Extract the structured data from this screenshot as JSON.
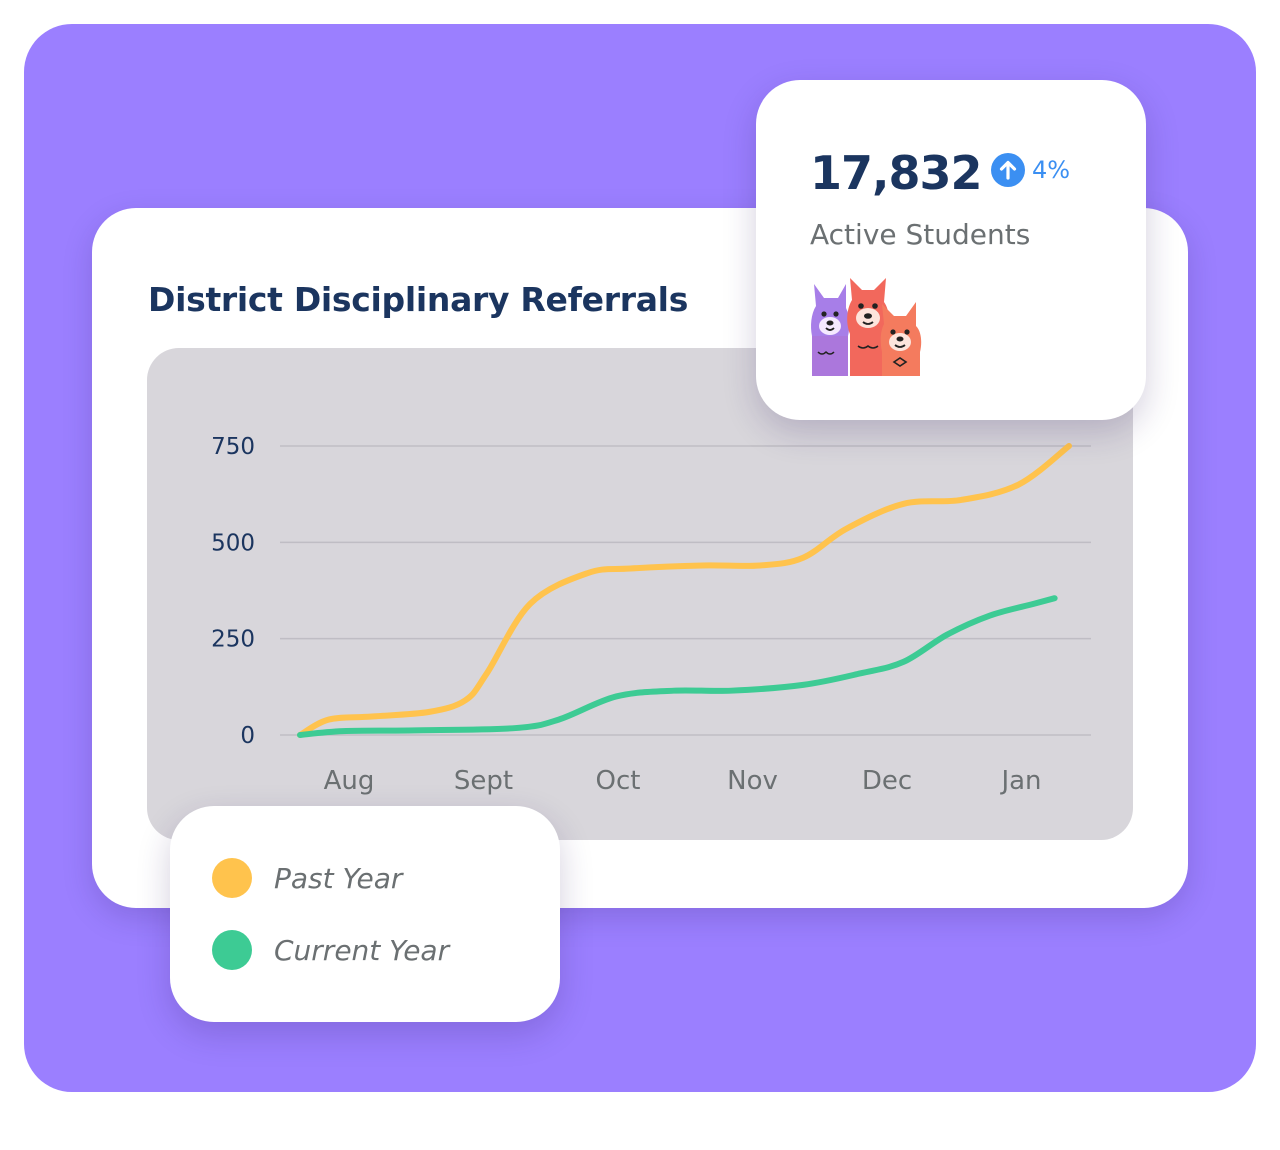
{
  "colors": {
    "background": "#9b7fff",
    "title": "#1b355f",
    "past_year": "#ffc34d",
    "current_year": "#3dcb94",
    "accent_blue": "#3b8ff2",
    "muted_text": "#6b7072"
  },
  "stat": {
    "value": "17,832",
    "change": "4%",
    "change_icon": "arrow-up-icon",
    "label": "Active Students",
    "illustration": "llama-group-icon"
  },
  "chart_data": {
    "type": "line",
    "title": "District Disciplinary Referrals",
    "xlabel": "",
    "ylabel": "",
    "categories": [
      "Aug",
      "Sept",
      "Oct",
      "Nov",
      "Dec",
      "Jan"
    ],
    "yticks": [
      "0",
      "250",
      "500",
      "750"
    ],
    "ylim": [
      0,
      750
    ],
    "grid": true,
    "legend": "bottom-left",
    "series": [
      {
        "name": "Past Year",
        "color": "#ffc34d",
        "x": [
          0,
          0.2,
          0.5,
          0.9,
          1.15,
          1.3,
          1.6,
          2.0,
          2.3,
          2.8,
          3.2,
          3.5,
          3.8,
          4.2,
          4.6,
          5.0,
          5.35
        ],
        "y": [
          0,
          40,
          48,
          60,
          90,
          160,
          340,
          420,
          432,
          440,
          440,
          460,
          535,
          600,
          610,
          650,
          750
        ]
      },
      {
        "name": "Current Year",
        "color": "#3dcb94",
        "x": [
          0,
          0.3,
          0.8,
          1.5,
          1.8,
          2.2,
          2.6,
          3.0,
          3.5,
          3.9,
          4.2,
          4.5,
          4.8,
          5.1,
          5.25
        ],
        "y": [
          0,
          10,
          12,
          18,
          40,
          100,
          115,
          115,
          130,
          160,
          190,
          260,
          310,
          340,
          355
        ]
      }
    ]
  }
}
